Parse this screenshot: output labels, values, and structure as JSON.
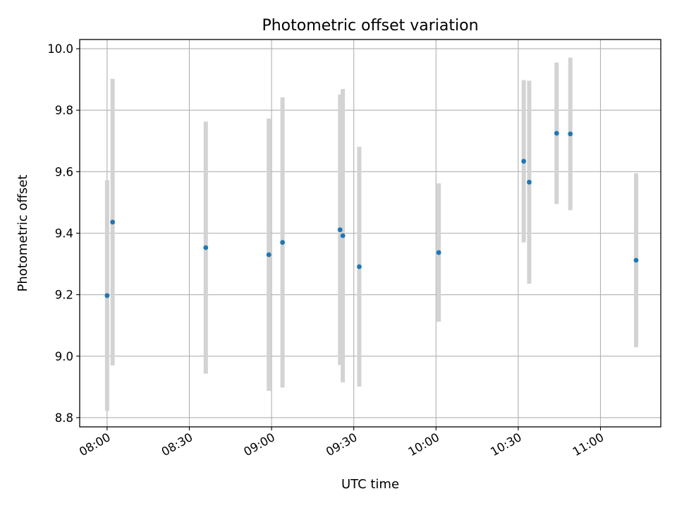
{
  "chart_data": {
    "type": "scatter",
    "title": "Photometric offset variation",
    "xlabel": "UTC time",
    "ylabel": "Photometric offset",
    "x_tick_labels": [
      "08:00",
      "08:30",
      "09:00",
      "09:30",
      "10:00",
      "10:30",
      "11:00"
    ],
    "y_tick_labels": [
      "8.8",
      "9.0",
      "9.2",
      "9.4",
      "9.6",
      "9.8",
      "10.0"
    ],
    "xlim": [
      "07:50",
      "11:22"
    ],
    "ylim": [
      8.77,
      10.03
    ],
    "grid": true,
    "point_color": "#1f77b4",
    "errorbar_color": "#d3d3d3",
    "points": [
      {
        "x": "08:00",
        "y": 9.197,
        "err": 0.375
      },
      {
        "x": "08:02",
        "y": 9.436,
        "err": 0.466
      },
      {
        "x": "08:36",
        "y": 9.353,
        "err": 0.41
      },
      {
        "x": "08:59",
        "y": 9.33,
        "err": 0.443
      },
      {
        "x": "09:04",
        "y": 9.37,
        "err": 0.472
      },
      {
        "x": "09:25",
        "y": 9.411,
        "err": 0.44
      },
      {
        "x": "09:26",
        "y": 9.392,
        "err": 0.477
      },
      {
        "x": "09:32",
        "y": 9.291,
        "err": 0.39
      },
      {
        "x": "10:01",
        "y": 9.337,
        "err": 0.225
      },
      {
        "x": "10:32",
        "y": 9.634,
        "err": 0.264
      },
      {
        "x": "10:34",
        "y": 9.566,
        "err": 0.33
      },
      {
        "x": "10:44",
        "y": 9.725,
        "err": 0.23
      },
      {
        "x": "10:49",
        "y": 9.723,
        "err": 0.248
      },
      {
        "x": "11:13",
        "y": 9.312,
        "err": 0.283
      }
    ]
  }
}
